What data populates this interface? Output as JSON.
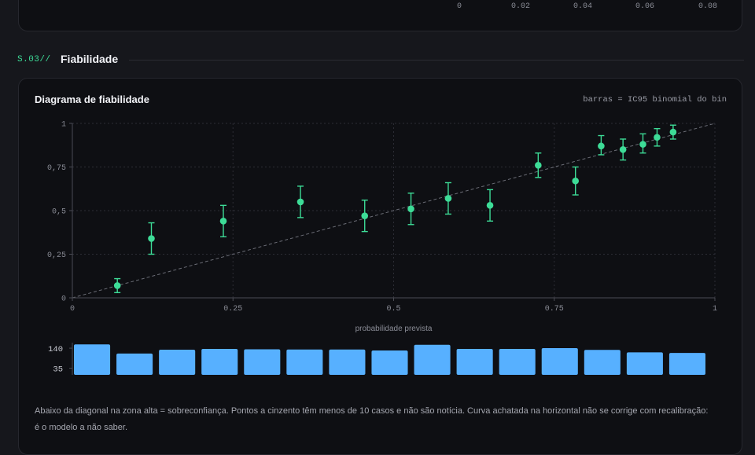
{
  "top_card": {
    "tick_labels": [
      "0",
      "0.02",
      "0.04",
      "0.06",
      "0.08"
    ]
  },
  "section": {
    "tag": "S.03//",
    "title": "Fiabilidade"
  },
  "card": {
    "title": "Diagrama de fiabilidade",
    "note": "barras = IC95 binomial do bin",
    "caption": "Abaixo da diagonal na zona alta = sobreconfiança. Pontos a cinzento têm menos de 10 casos e não são notícia. Curva achatada na horizontal não se corrige com recalibração: é o modelo a não saber."
  },
  "colors": {
    "accent": "#3ddc97",
    "histogram": "#57b0ff",
    "diagonal": "#6a6c75"
  },
  "chart_data": [
    {
      "type": "scatter",
      "title": "Diagrama de fiabilidade",
      "xlabel": "probabilidade prevista",
      "ylabel": "",
      "xlim": [
        0,
        1
      ],
      "ylim": [
        0,
        1
      ],
      "x_ticks": [
        "0",
        "0.25",
        "0.5",
        "0.75",
        "1"
      ],
      "y_ticks": [
        "0",
        "0,25",
        "0,5",
        "0,75",
        "1"
      ],
      "grid": true,
      "reference_line": "diagonal y = x",
      "points": [
        {
          "x": 0.07,
          "y": 0.07,
          "low": 0.03,
          "high": 0.11
        },
        {
          "x": 0.123,
          "y": 0.34,
          "low": 0.25,
          "high": 0.43
        },
        {
          "x": 0.235,
          "y": 0.44,
          "low": 0.35,
          "high": 0.53
        },
        {
          "x": 0.355,
          "y": 0.55,
          "low": 0.46,
          "high": 0.64
        },
        {
          "x": 0.455,
          "y": 0.47,
          "low": 0.38,
          "high": 0.56
        },
        {
          "x": 0.527,
          "y": 0.51,
          "low": 0.42,
          "high": 0.6
        },
        {
          "x": 0.585,
          "y": 0.57,
          "low": 0.48,
          "high": 0.66
        },
        {
          "x": 0.65,
          "y": 0.53,
          "low": 0.44,
          "high": 0.62
        },
        {
          "x": 0.725,
          "y": 0.76,
          "low": 0.69,
          "high": 0.83
        },
        {
          "x": 0.783,
          "y": 0.67,
          "low": 0.59,
          "high": 0.75
        },
        {
          "x": 0.823,
          "y": 0.87,
          "low": 0.82,
          "high": 0.93
        },
        {
          "x": 0.857,
          "y": 0.85,
          "low": 0.79,
          "high": 0.91
        },
        {
          "x": 0.888,
          "y": 0.88,
          "low": 0.83,
          "high": 0.94
        },
        {
          "x": 0.91,
          "y": 0.92,
          "low": 0.87,
          "high": 0.97
        },
        {
          "x": 0.935,
          "y": 0.95,
          "low": 0.91,
          "high": 0.99
        }
      ]
    },
    {
      "type": "bar",
      "title": "",
      "y_ticks": [
        "140",
        "35"
      ],
      "bins": 15,
      "values": [
        160,
        112,
        132,
        136,
        134,
        133,
        133,
        128,
        158,
        136,
        136,
        140,
        131,
        118,
        115
      ]
    }
  ]
}
